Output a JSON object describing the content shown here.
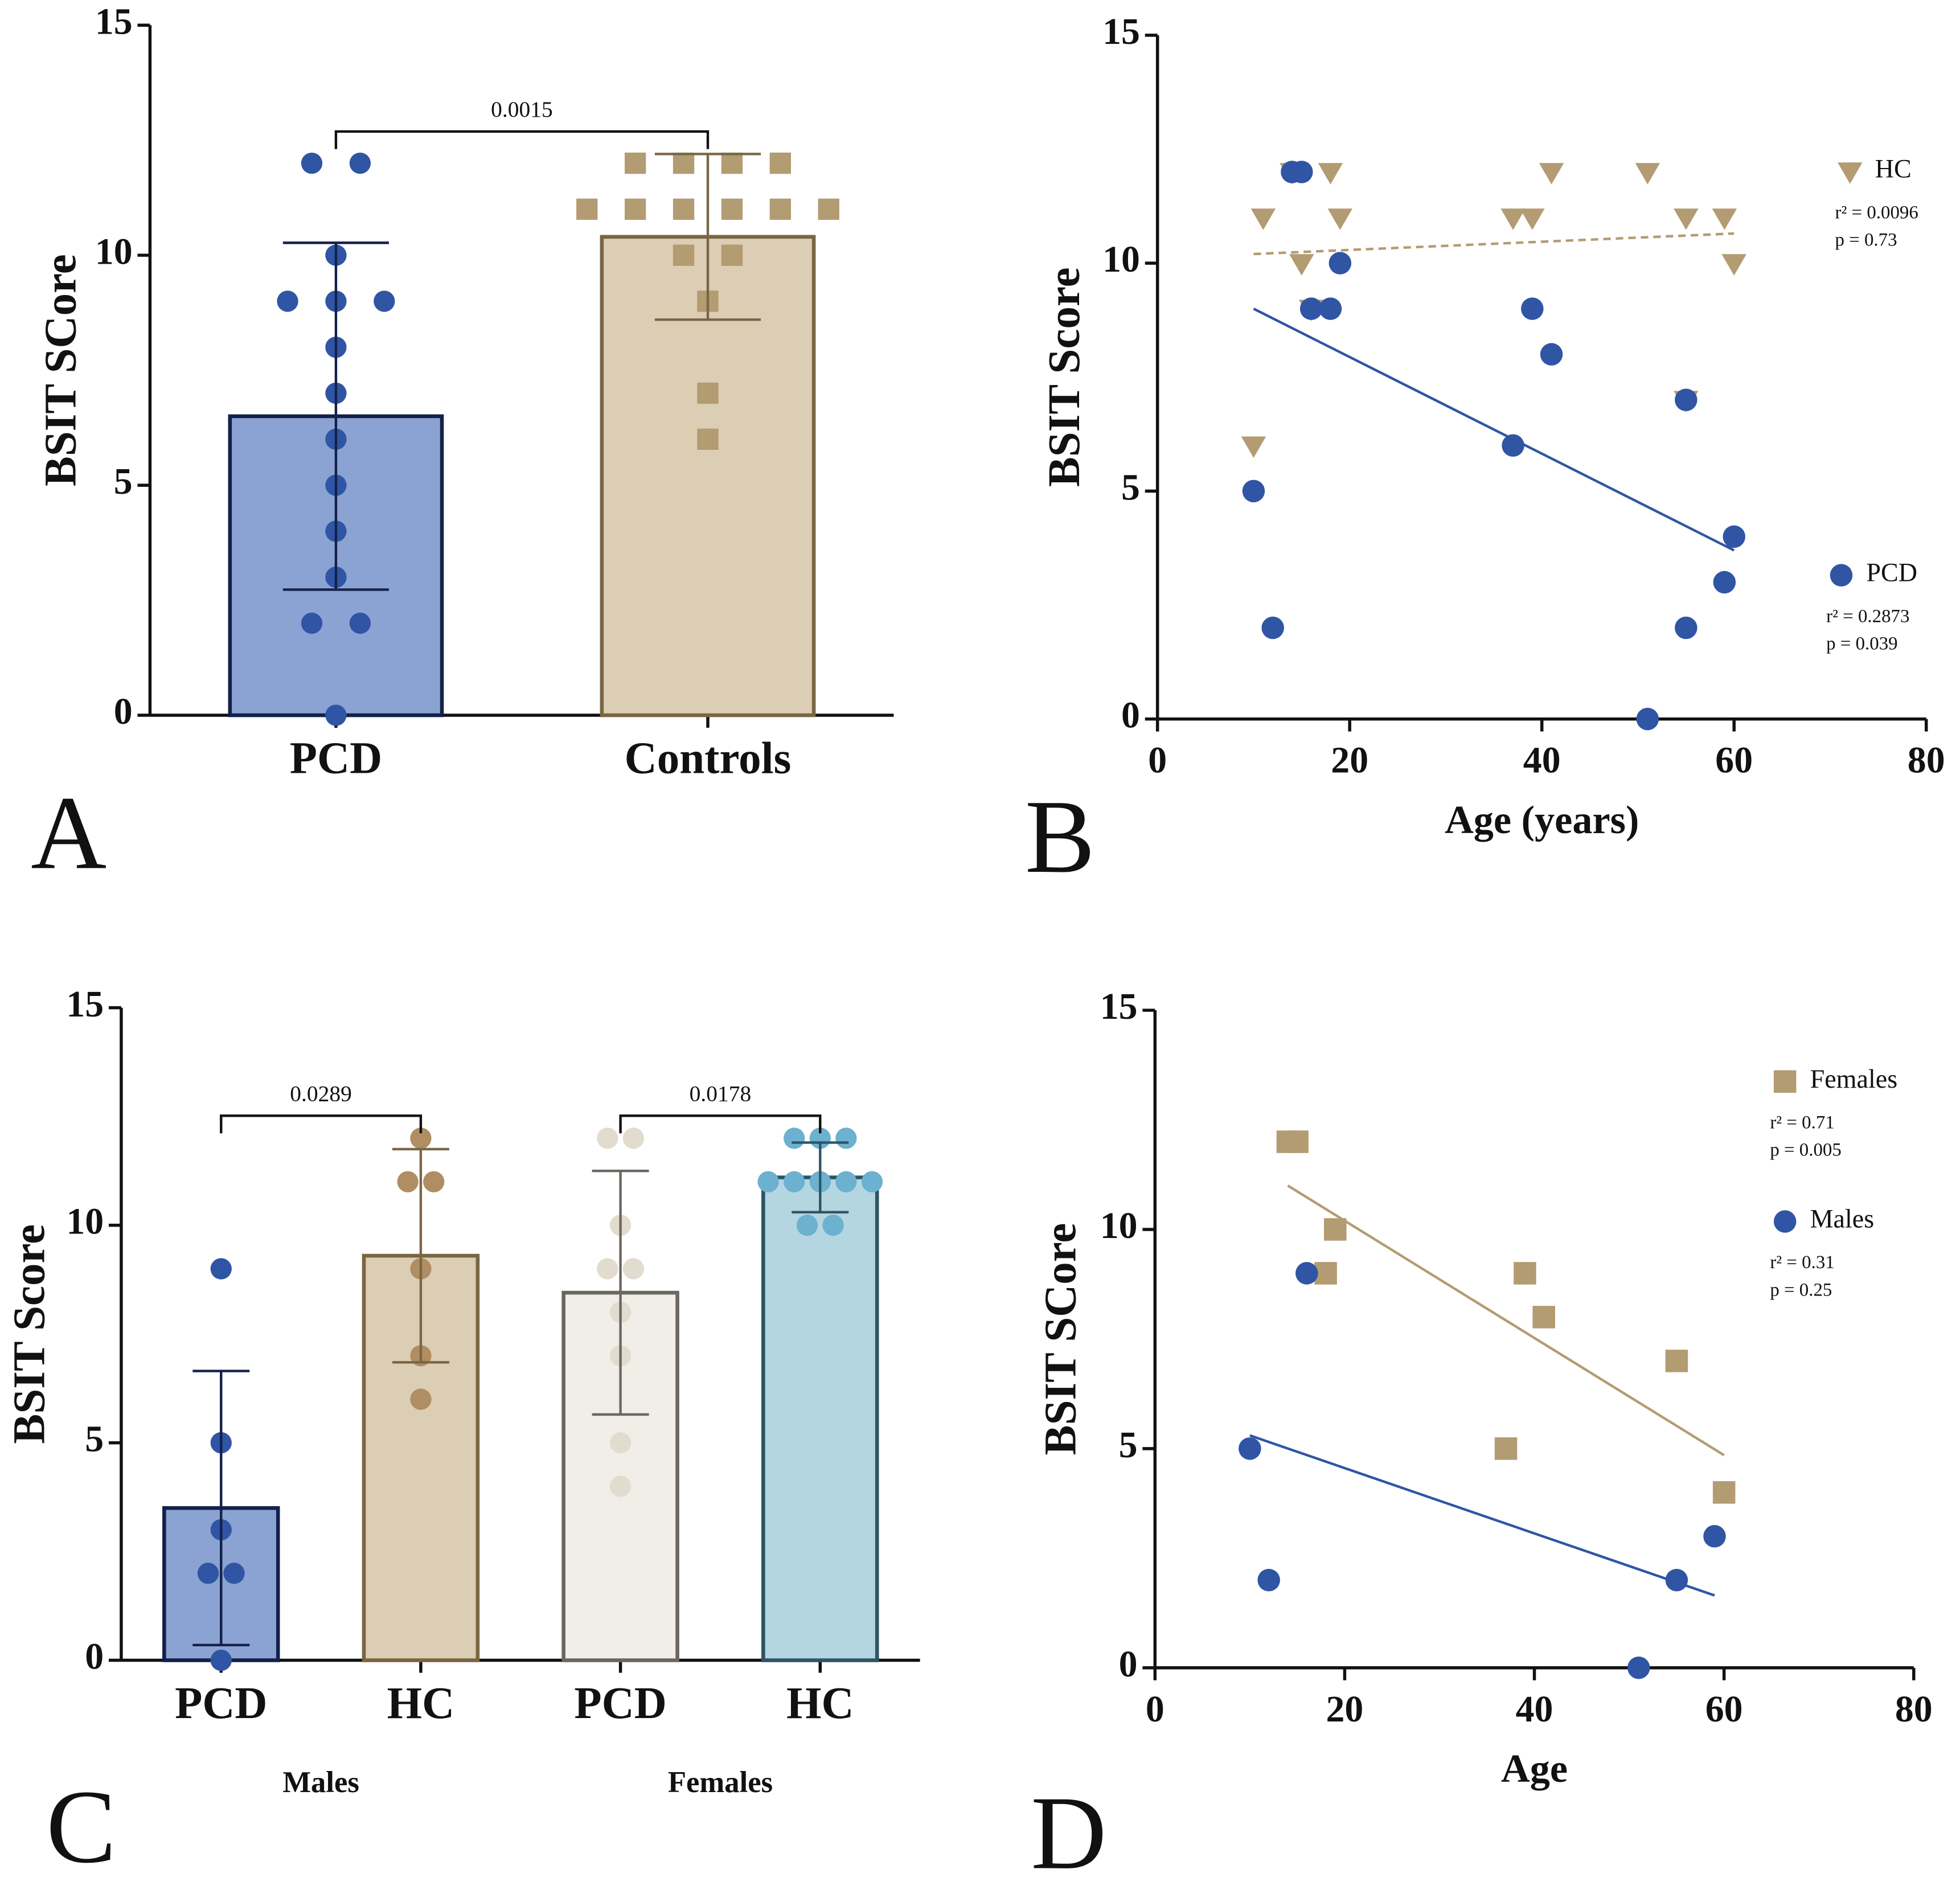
{
  "chart_data": [
    {
      "type": "bar",
      "panel": "A",
      "ylabel": "BSIT SCore",
      "categories": [
        "PCD",
        "Controls"
      ],
      "values": [
        6.5,
        10.4
      ],
      "errors": [
        3.77,
        1.8
      ],
      "points": [
        [
          12,
          12,
          10,
          9,
          9,
          9,
          8,
          7,
          6,
          5,
          4,
          3,
          2,
          2,
          0
        ],
        [
          12,
          12,
          12,
          12,
          11,
          11,
          11,
          11,
          11,
          11,
          10,
          10,
          9,
          7,
          6
        ]
      ],
      "colors": [
        "#8ba3d2",
        "#dccdb5"
      ],
      "edge_colors": [
        "#13214a",
        "#7a6643"
      ],
      "point_colors": [
        "#2f55a4",
        "#b39b72"
      ],
      "markers": [
        "circle",
        "square"
      ],
      "annotations": [
        "0.0015"
      ],
      "ylim": [
        0,
        15
      ],
      "yticks": [
        0,
        5,
        10,
        15
      ]
    },
    {
      "type": "scatter",
      "panel": "B",
      "xlabel": "Age (years)",
      "ylabel": "BSIT Score",
      "xlim": [
        0,
        80
      ],
      "xticks": [
        0,
        20,
        40,
        60,
        80
      ],
      "ylim": [
        0,
        15
      ],
      "yticks": [
        0,
        5,
        10,
        15
      ],
      "series": [
        {
          "name": "HC",
          "color": "#b39b72",
          "marker": "triangle",
          "fit_dashed": true,
          "r2": "r² = 0.0096",
          "p": "p = 0.73",
          "x": [
            10,
            11,
            14,
            15,
            16,
            18,
            19,
            37,
            39,
            41,
            51,
            55,
            55,
            59,
            60
          ],
          "y": [
            6,
            11,
            12,
            10,
            9,
            12,
            11,
            11,
            11,
            12,
            12,
            11,
            7,
            11,
            10
          ],
          "fit": {
            "x": [
              10,
              60
            ],
            "y": [
              10.2,
              10.65
            ]
          }
        },
        {
          "name": "PCD",
          "color": "#2f55a4",
          "marker": "circle",
          "fit_dashed": false,
          "r2": "r² = 0.2873",
          "p": "p = 0.039",
          "x": [
            10,
            12,
            14,
            15,
            16,
            18,
            19,
            37,
            39,
            41,
            51,
            55,
            55,
            59,
            60
          ],
          "y": [
            5,
            2,
            12,
            12,
            9,
            9,
            10,
            6,
            9,
            8,
            0,
            7,
            2,
            3,
            4
          ],
          "fit": {
            "x": [
              10,
              60
            ],
            "y": [
              9.0,
              3.7
            ]
          }
        }
      ]
    },
    {
      "type": "bar",
      "panel": "C",
      "ylabel": "BSIT Score",
      "categories": [
        "PCD",
        "HC",
        "PCD",
        "HC"
      ],
      "group_labels": [
        "Males",
        "Females"
      ],
      "values": [
        3.5,
        9.3,
        8.45,
        11.1
      ],
      "errors": [
        3.15,
        2.45,
        2.8,
        0.8
      ],
      "points": [
        [
          9,
          5,
          3,
          2,
          2,
          0
        ],
        [
          12,
          11,
          11,
          9,
          7,
          6
        ],
        [
          12,
          12,
          10,
          9,
          9,
          8,
          7,
          5,
          4
        ],
        [
          12,
          12,
          12,
          11,
          11,
          11,
          11,
          11,
          10,
          10
        ]
      ],
      "colors": [
        "#8ba3d2",
        "#dccdb5",
        "#f1eee8",
        "#b4d6e1"
      ],
      "edge_colors": [
        "#13214a",
        "#7a6643",
        "#6b6760",
        "#2e5564"
      ],
      "point_colors": [
        "#2f55a4",
        "#b08d63",
        "#e2dccf",
        "#6cb1cf"
      ],
      "markers": [
        "circle",
        "circle",
        "circle",
        "circle"
      ],
      "annotations": [
        "0.0289",
        "0.0178"
      ],
      "ylim": [
        0,
        15
      ],
      "yticks": [
        0,
        5,
        10,
        15
      ]
    },
    {
      "type": "scatter",
      "panel": "D",
      "xlabel": "Age",
      "ylabel": "BSIT SCore",
      "xlim": [
        0,
        80
      ],
      "xticks": [
        0,
        20,
        40,
        60,
        80
      ],
      "ylim": [
        0,
        15
      ],
      "yticks": [
        0,
        5,
        10,
        15
      ],
      "series": [
        {
          "name": "Females",
          "color": "#b39b72",
          "marker": "square",
          "fit_dashed": false,
          "r2": "r² = 0.71",
          "p": "p = 0.005",
          "x": [
            14,
            15,
            18,
            19,
            37,
            39,
            41,
            55,
            60
          ],
          "y": [
            12,
            12,
            9,
            10,
            5,
            9,
            8,
            7,
            4
          ],
          "fit": {
            "x": [
              14,
              60
            ],
            "y": [
              11.0,
              4.85
            ]
          }
        },
        {
          "name": "Males",
          "color": "#2f55a4",
          "marker": "circle",
          "fit_dashed": false,
          "r2": "r² = 0.31",
          "p": "p = 0.25",
          "x": [
            10,
            12,
            16,
            51,
            55,
            59
          ],
          "y": [
            5,
            2,
            9,
            0,
            2,
            3
          ],
          "fit": {
            "x": [
              10,
              59
            ],
            "y": [
              5.3,
              1.65
            ]
          }
        }
      ]
    }
  ]
}
